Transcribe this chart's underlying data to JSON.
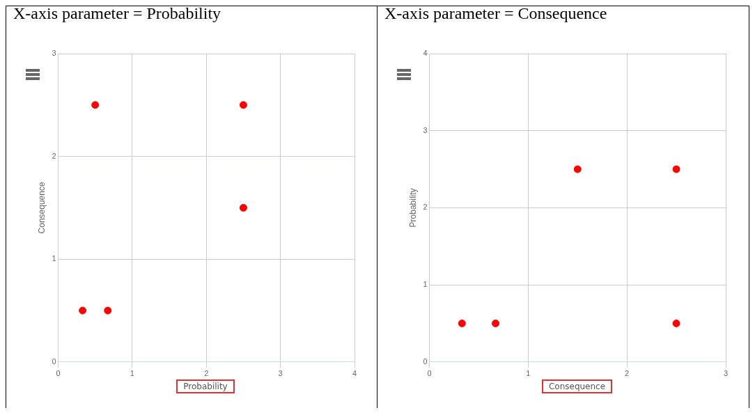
{
  "chart_data": [
    {
      "type": "scatter",
      "title": "X-axis parameter = Probability",
      "xlabel": "Probability",
      "ylabel": "Consequence",
      "x": [
        0.33,
        0.67,
        0.5,
        2.5,
        2.5
      ],
      "values": [
        0.5,
        0.5,
        2.5,
        2.5,
        1.5
      ],
      "color": "#ff0000",
      "xlim": [
        0,
        4
      ],
      "xticks": [
        0,
        1,
        2,
        3,
        4
      ],
      "ylim": [
        0,
        3
      ],
      "yticks": [
        0,
        1,
        2,
        3
      ],
      "grid": true,
      "legend": false,
      "marker": "circle"
    },
    {
      "type": "scatter",
      "title": "X-axis parameter = Consequence",
      "xlabel": "Consequence",
      "ylabel": "Probability",
      "x": [
        0.33,
        0.67,
        1.5,
        2.5,
        2.5
      ],
      "values": [
        0.5,
        0.5,
        2.5,
        2.5,
        0.5
      ],
      "color": "#ff0000",
      "xlim": [
        0,
        3
      ],
      "xticks": [
        0,
        1,
        2,
        3
      ],
      "ylim": [
        0,
        4
      ],
      "yticks": [
        0,
        1,
        2,
        3,
        4
      ],
      "grid": true,
      "legend": false,
      "marker": "circle"
    }
  ]
}
